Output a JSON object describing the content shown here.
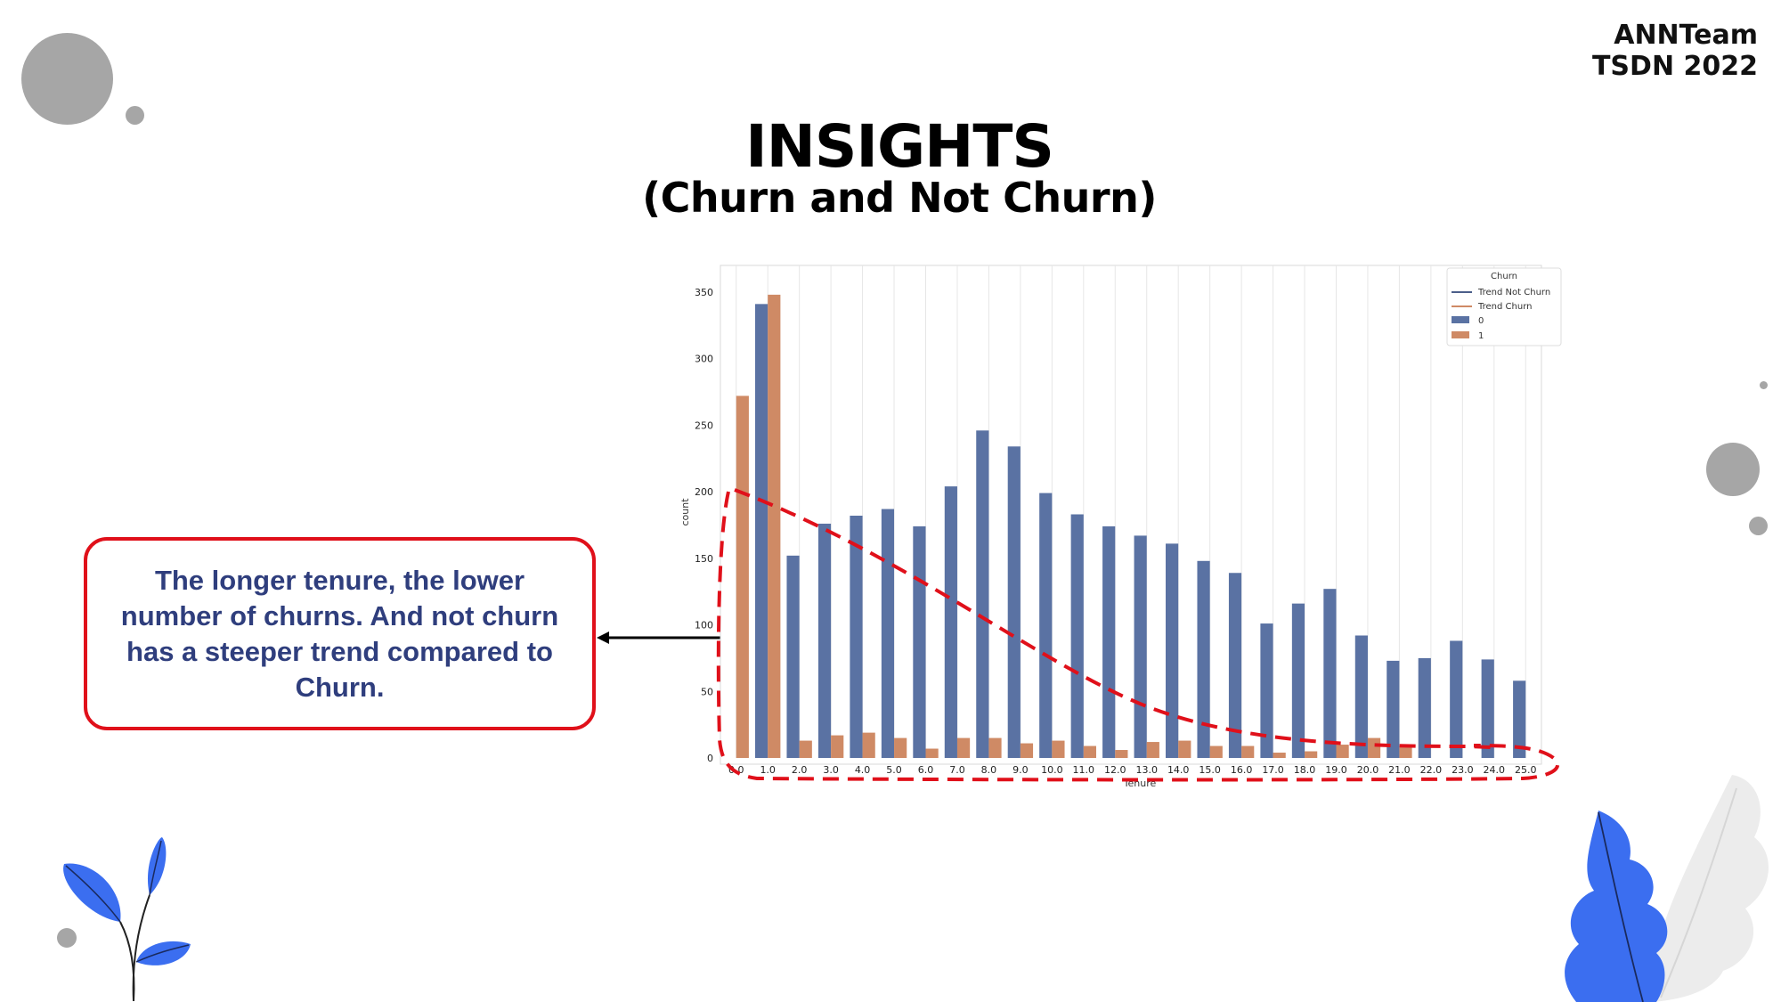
{
  "header": {
    "team_line1": "ANNTeam",
    "team_line2": "TSDN 2022",
    "title": "INSIGHTS",
    "subtitle": "(Churn and Not Churn)"
  },
  "callout": {
    "text": "The longer tenure, the lower number of churns. And not churn has a steeper trend compared to Churn."
  },
  "colors": {
    "not_churn": "#5a72a3",
    "churn": "#cf8a65",
    "annotation_red": "#e0101a",
    "callout_text": "#2f3e7d",
    "decor_gray": "#a6a6a6",
    "leaf_blue": "#3b6ef0"
  },
  "decorations": [
    "gray-circle",
    "blue-leaf-plant",
    "gray-leaf"
  ],
  "chart_data": {
    "type": "bar",
    "xlabel": "Tenure",
    "ylabel": "count",
    "ylim": [
      0,
      370
    ],
    "yticks": [
      0,
      50,
      100,
      150,
      200,
      250,
      300,
      350
    ],
    "grid": "vertical",
    "legend_placement": "top-right",
    "legend_title": "Churn",
    "legend_entries": [
      "Trend Not Churn",
      "Trend Churn",
      "0",
      "1"
    ],
    "categories": [
      "0.0",
      "1.0",
      "2.0",
      "3.0",
      "4.0",
      "5.0",
      "6.0",
      "7.0",
      "8.0",
      "9.0",
      "10.0",
      "11.0",
      "12.0",
      "13.0",
      "14.0",
      "15.0",
      "16.0",
      "17.0",
      "18.0",
      "19.0",
      "20.0",
      "21.0",
      "22.0",
      "23.0",
      "24.0",
      "25.0"
    ],
    "series": [
      {
        "name": "0",
        "values": [
          0,
          341,
          152,
          176,
          182,
          187,
          174,
          204,
          246,
          234,
          199,
          183,
          174,
          167,
          161,
          148,
          139,
          101,
          116,
          127,
          92,
          73,
          75,
          88,
          74,
          58
        ]
      },
      {
        "name": "1",
        "values": [
          272,
          348,
          13,
          17,
          19,
          15,
          7,
          15,
          15,
          11,
          13,
          9,
          6,
          12,
          13,
          9,
          9,
          4,
          5,
          10,
          15,
          9,
          0,
          0,
          0,
          0
        ]
      }
    ],
    "trends": [
      {
        "name": "Trend Not Churn"
      },
      {
        "name": "Trend Churn"
      }
    ]
  }
}
